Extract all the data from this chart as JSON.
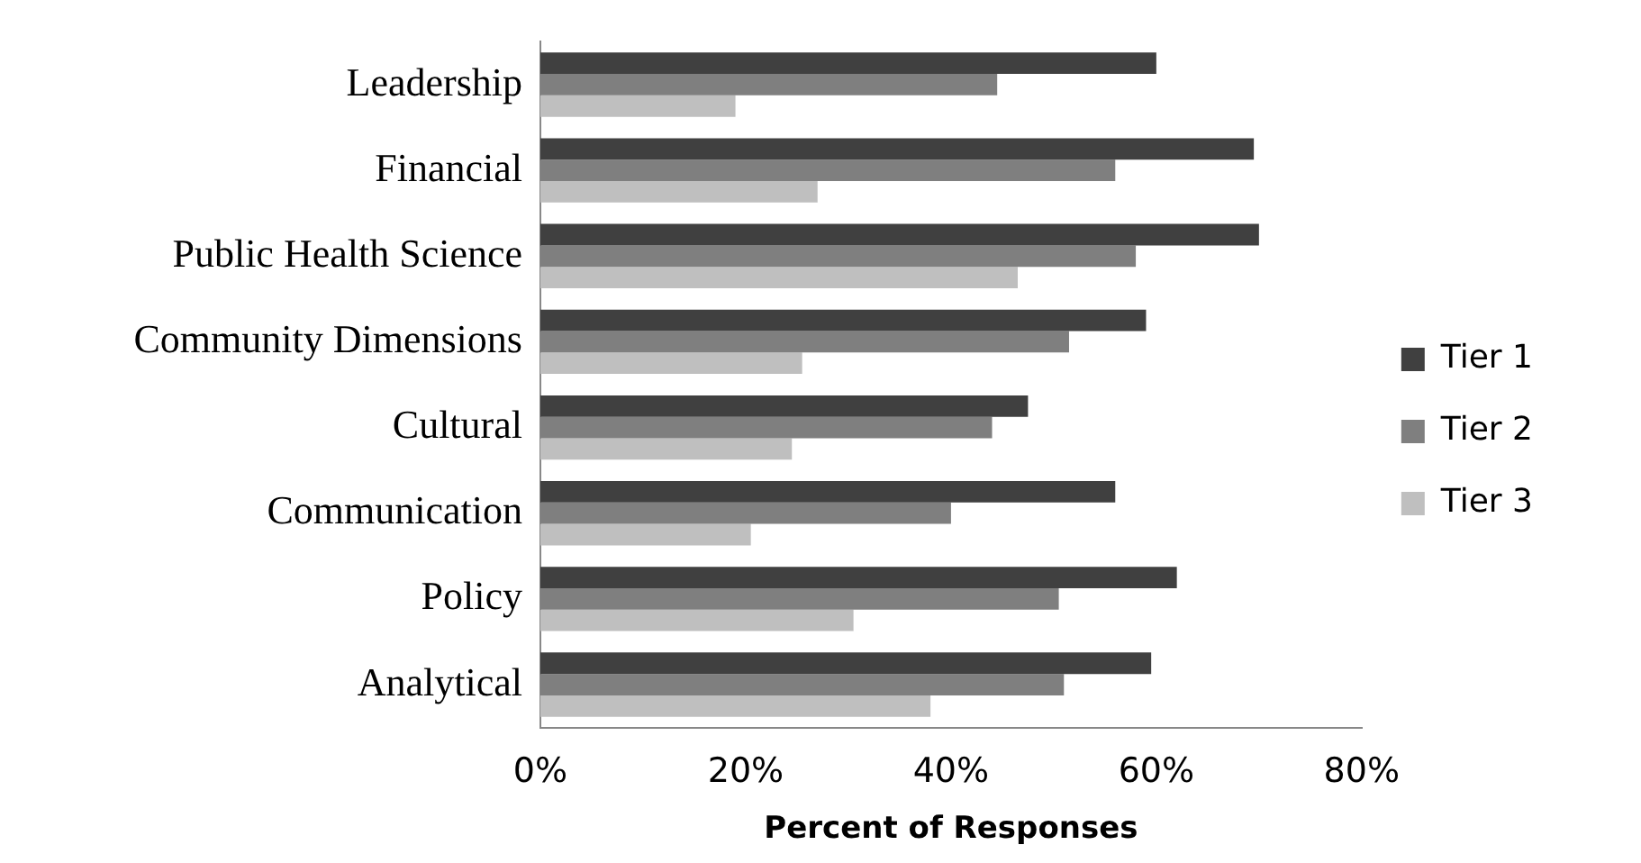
{
  "chart_data": {
    "type": "bar",
    "orientation": "horizontal",
    "xlabel": "Percent of Responses",
    "categories": [
      "Leadership",
      "Financial",
      "Public Health Science",
      "Community Dimensions",
      "Cultural",
      "Communication",
      "Policy",
      "Analytical"
    ],
    "series": [
      {
        "name": "Tier 1",
        "color": "#404040",
        "values": [
          60,
          69.5,
          70,
          59,
          47.5,
          56,
          62,
          59.5
        ]
      },
      {
        "name": "Tier 2",
        "color": "#7f7f7f",
        "values": [
          44.5,
          56,
          58,
          51.5,
          44,
          40,
          50.5,
          51
        ]
      },
      {
        "name": "Tier 3",
        "color": "#bfbfbf",
        "values": [
          19,
          27,
          46.5,
          25.5,
          24.5,
          20.5,
          30.5,
          38
        ]
      }
    ],
    "xlim": [
      0,
      80
    ],
    "xticks": [
      {
        "value": 0,
        "label": "0%"
      },
      {
        "value": 20,
        "label": "20%"
      },
      {
        "value": 40,
        "label": "40%"
      },
      {
        "value": 60,
        "label": "60%"
      },
      {
        "value": 80,
        "label": "80%"
      }
    ],
    "grid": false,
    "legend": "right"
  }
}
